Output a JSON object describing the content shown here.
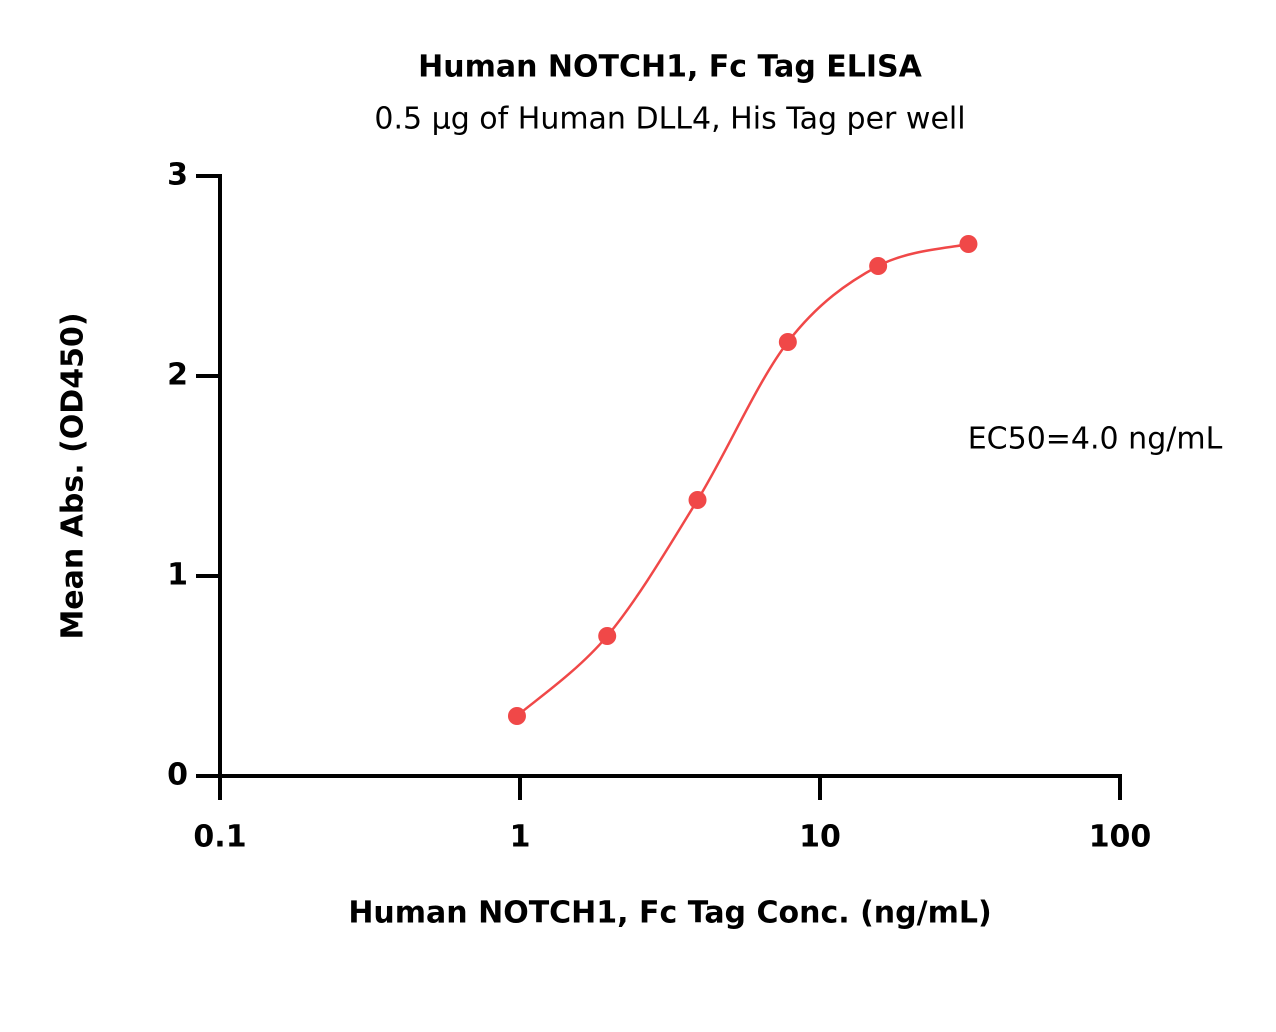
{
  "chart_data": {
    "type": "line",
    "title": "Human NOTCH1, Fc Tag ELISA",
    "subtitle": "0.5 μg of Human DLL4, His Tag per well",
    "x_label": "Human NOTCH1, Fc Tag Conc. (ng/mL)",
    "y_label": "Mean Abs. (OD450)",
    "annotation": "EC50=4.0 ng/mL",
    "x": [
      0.977,
      1.953,
      3.906,
      7.8125,
      15.625,
      31.25
    ],
    "values": [
      0.3,
      0.7,
      1.38,
      2.17,
      2.55,
      2.66
    ],
    "color": "#f04848",
    "x_log": true,
    "xlim": [
      0.1,
      100
    ],
    "xticks": [
      0.1,
      1,
      10,
      100
    ],
    "ylim": [
      0,
      3
    ],
    "yticks": [
      0,
      1,
      2,
      3
    ]
  }
}
